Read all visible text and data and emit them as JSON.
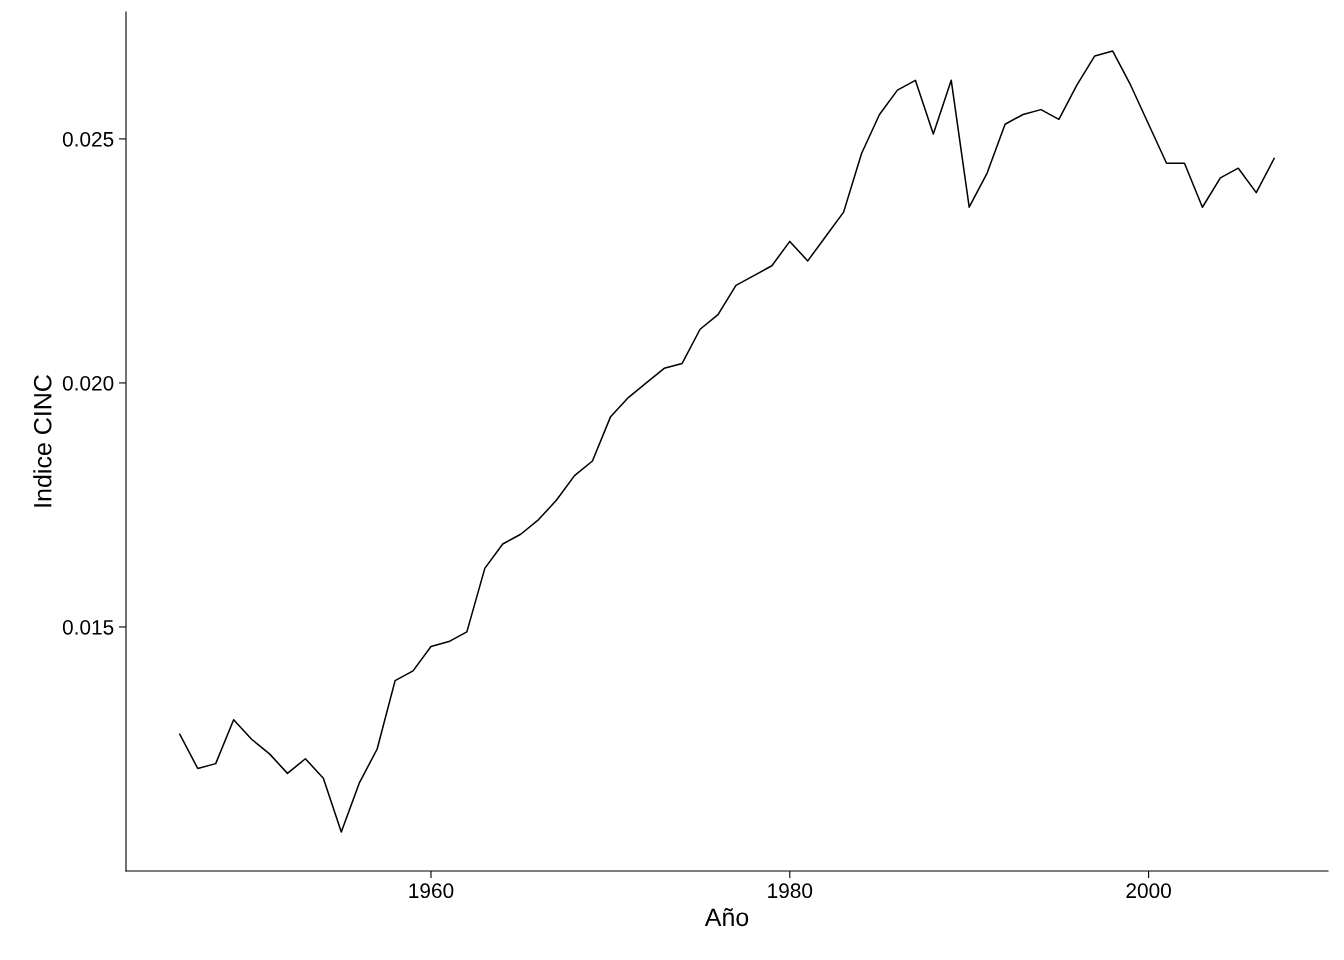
{
  "chart_data": {
    "type": "line",
    "xlabel": "Año",
    "ylabel": "Indice CINC",
    "x": [
      1946,
      1947,
      1948,
      1949,
      1950,
      1951,
      1952,
      1953,
      1954,
      1955,
      1956,
      1957,
      1958,
      1959,
      1960,
      1961,
      1962,
      1963,
      1964,
      1965,
      1966,
      1967,
      1968,
      1969,
      1970,
      1971,
      1972,
      1973,
      1974,
      1975,
      1976,
      1977,
      1978,
      1979,
      1980,
      1981,
      1982,
      1983,
      1984,
      1985,
      1986,
      1987,
      1988,
      1989,
      1990,
      1991,
      1992,
      1993,
      1994,
      1995,
      1996,
      1997,
      1998,
      1999,
      2000,
      2001,
      2002,
      2003,
      2004,
      2005,
      2006,
      2007
    ],
    "series": [
      {
        "color": "#000000",
        "values": [
          0.0128,
          0.0121,
          0.0122,
          0.0131,
          0.0127,
          0.0124,
          0.012,
          0.0123,
          0.0119,
          0.0108,
          0.0118,
          0.0125,
          0.0139,
          0.0141,
          0.0146,
          0.0147,
          0.0149,
          0.0162,
          0.0167,
          0.0169,
          0.0172,
          0.0176,
          0.0181,
          0.0184,
          0.0193,
          0.0197,
          0.02,
          0.0203,
          0.0204,
          0.0211,
          0.0214,
          0.022,
          0.0222,
          0.0224,
          0.0229,
          0.0225,
          0.023,
          0.0235,
          0.0247,
          0.0255,
          0.026,
          0.0262,
          0.0251,
          0.0262,
          0.0236,
          0.0243,
          0.0253,
          0.0255,
          0.0256,
          0.0254,
          0.0261,
          0.0267,
          0.0268,
          0.0261,
          0.0253,
          0.0245,
          0.0245,
          0.0236,
          0.0242,
          0.0244,
          0.0239,
          0.0246
        ]
      }
    ],
    "xlim": [
      1943,
      2010
    ],
    "xticks": [
      1960,
      1980,
      2000
    ],
    "ylim": [
      0.01,
      0.0276
    ],
    "yticks": [
      {
        "value": 0.015,
        "label": "0.015"
      },
      {
        "value": 0.02,
        "label": "0.020"
      },
      {
        "value": 0.025,
        "label": "0.025"
      }
    ],
    "grid": false
  }
}
